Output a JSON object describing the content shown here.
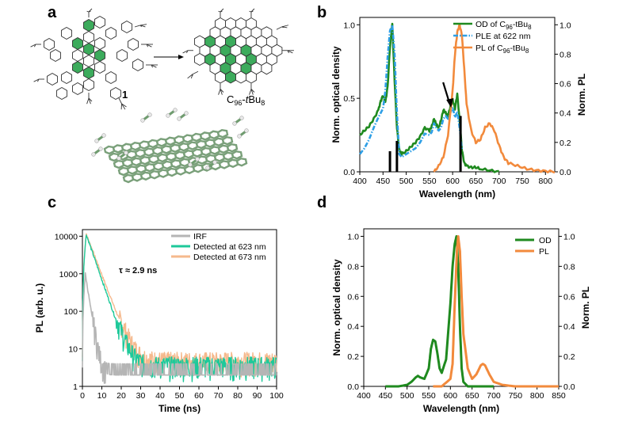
{
  "panels": {
    "a": "a",
    "b": "b",
    "c": "c",
    "d": "d"
  },
  "scheme": {
    "reactant_label": "1",
    "product_label": "C96-tBu8",
    "product_label_main": "C",
    "product_label_sub": "96",
    "product_label_mid": "-",
    "product_label_italic": "t",
    "product_label_tail": "Bu",
    "product_label_tail_sub": "8"
  },
  "colors": {
    "green": "#1f8a1f",
    "orange": "#f28a3c",
    "blue": "#2e9fe6",
    "grey": "#b5b5b5",
    "teal": "#1ec99a",
    "peach": "#f5b98d",
    "hex_fill": "#3cab5c"
  },
  "chart_data": [
    {
      "id": "b",
      "type": "line",
      "xlabel": "Wavelength (nm)",
      "ylabel": "Norm. optical density",
      "y2label": "Norm. PL",
      "xlim": [
        400,
        820
      ],
      "ylim": [
        0,
        1.05
      ],
      "y2lim": [
        0,
        1.05
      ],
      "xticks": [
        "400",
        "450",
        "500",
        "550",
        "600",
        "650",
        "700",
        "750",
        "800"
      ],
      "yticks": [
        "0.0",
        "0.5",
        "1.0"
      ],
      "y2ticks": [
        "0.0",
        "0.2",
        "0.4",
        "0.6",
        "0.8",
        "1.0"
      ],
      "legend": [
        {
          "text": "OD of C",
          "sub": "96",
          "tail": "-tBu",
          "tailsub": "8"
        },
        {
          "text": "PLE at 622 nm",
          "sub": "",
          "tail": "",
          "tailsub": ""
        },
        {
          "text": "PL of C",
          "sub": "96",
          "tail": "-tBu",
          "tailsub": "8"
        }
      ],
      "series": [
        {
          "name": "OD of C96-tBu8",
          "style": "solid",
          "color": "green",
          "x": [
            400,
            410,
            420,
            430,
            440,
            445,
            450,
            455,
            460,
            465,
            470,
            475,
            480,
            485,
            490,
            500,
            510,
            520,
            530,
            540,
            550,
            555,
            560,
            565,
            570,
            575,
            580,
            585,
            590,
            595,
            600,
            605,
            610,
            615,
            620,
            625,
            630,
            640,
            650,
            660,
            680,
            700
          ],
          "y": [
            0.25,
            0.28,
            0.31,
            0.36,
            0.42,
            0.48,
            0.52,
            0.47,
            0.58,
            0.85,
            1.0,
            0.62,
            0.3,
            0.15,
            0.12,
            0.14,
            0.17,
            0.2,
            0.24,
            0.3,
            0.28,
            0.31,
            0.36,
            0.32,
            0.3,
            0.35,
            0.42,
            0.4,
            0.38,
            0.44,
            0.49,
            0.43,
            0.53,
            0.35,
            0.15,
            0.06,
            0.04,
            0.03,
            0.03,
            0.02,
            0.01,
            0.0
          ]
        },
        {
          "name": "PLE at 622 nm",
          "style": "dashdot",
          "color": "blue",
          "x": [
            400,
            410,
            420,
            430,
            440,
            450,
            455,
            460,
            465,
            470,
            475,
            480,
            485,
            490,
            500,
            510,
            520,
            530,
            540,
            550,
            555,
            560,
            565,
            570,
            575,
            580,
            585,
            590,
            595,
            600,
            605,
            610,
            615,
            620
          ],
          "y": [
            0.12,
            0.16,
            0.22,
            0.3,
            0.37,
            0.43,
            0.55,
            0.78,
            0.96,
            1.0,
            0.8,
            0.4,
            0.12,
            0.1,
            0.12,
            0.14,
            0.16,
            0.2,
            0.26,
            0.25,
            0.27,
            0.33,
            0.3,
            0.28,
            0.3,
            0.36,
            0.38,
            0.36,
            0.4,
            0.44,
            0.37,
            0.41,
            0.3,
            0.15
          ]
        },
        {
          "name": "PL of C96-tBu8",
          "style": "solid",
          "color": "orange",
          "x": [
            560,
            570,
            580,
            590,
            600,
            605,
            610,
            615,
            620,
            625,
            630,
            640,
            650,
            660,
            670,
            680,
            690,
            700,
            710,
            720,
            740,
            760,
            780,
            800,
            820
          ],
          "y": [
            0.0,
            0.04,
            0.1,
            0.25,
            0.55,
            0.8,
            0.95,
            1.0,
            0.93,
            0.7,
            0.46,
            0.28,
            0.2,
            0.22,
            0.3,
            0.33,
            0.28,
            0.18,
            0.1,
            0.06,
            0.04,
            0.02,
            0.01,
            0.005,
            0.0
          ]
        }
      ],
      "bars": [
        {
          "x": 465,
          "y": 0.14
        },
        {
          "x": 480,
          "y": 0.21
        },
        {
          "x": 617,
          "y": 0.38
        }
      ],
      "arrow_at": 600
    },
    {
      "id": "c",
      "type": "line",
      "scale": "log",
      "xlabel": "Time (ns)",
      "ylabel": "PL (arb. u.)",
      "xlim": [
        0,
        100
      ],
      "ylim": [
        1,
        15000
      ],
      "xticks": [
        "0",
        "10",
        "20",
        "30",
        "40",
        "50",
        "60",
        "70",
        "80",
        "90",
        "100"
      ],
      "yticks": [
        "1",
        "10",
        "100",
        "1000",
        "10000"
      ],
      "annotation": "τ ≈ 2.9 ns",
      "legend": [
        "IRF",
        "Detected at 623 nm",
        "Detected at 673 nm"
      ],
      "series": [
        {
          "name": "IRF",
          "color": "grey",
          "peak_t": 1.5,
          "peak": 1000,
          "tau": 1.3,
          "noise_floor": 2
        },
        {
          "name": "Detected at 623 nm",
          "color": "teal",
          "peak_t": 2,
          "peak": 11000,
          "tau": 2.9,
          "noise_floor": 3
        },
        {
          "name": "Detected at 673 nm",
          "color": "peach",
          "peak_t": 2,
          "peak": 11500,
          "tau": 3.2,
          "noise_floor": 4
        }
      ]
    },
    {
      "id": "d",
      "type": "line",
      "xlabel": "Wavelength (nm)",
      "ylabel": "Norm. optical density",
      "y2label": "Norm. PL",
      "xlim": [
        400,
        850
      ],
      "ylim": [
        0,
        1.05
      ],
      "y2lim": [
        0,
        1.05
      ],
      "xticks": [
        "400",
        "450",
        "500",
        "550",
        "600",
        "650",
        "700",
        "750",
        "800",
        "850"
      ],
      "yticks": [
        "0.0",
        "0.2",
        "0.4",
        "0.6",
        "0.8",
        "1.0"
      ],
      "y2ticks": [
        "0.0",
        "0.2",
        "0.4",
        "0.6",
        "0.8",
        "1.0"
      ],
      "legend": [
        "OD",
        "PL"
      ],
      "series": [
        {
          "name": "OD",
          "color": "green",
          "x": [
            450,
            480,
            500,
            510,
            520,
            525,
            530,
            540,
            550,
            555,
            560,
            565,
            570,
            575,
            580,
            590,
            600,
            605,
            610,
            614,
            618,
            622,
            626,
            630,
            640,
            660,
            700
          ],
          "y": [
            0.0,
            0.0,
            0.01,
            0.03,
            0.06,
            0.07,
            0.06,
            0.05,
            0.12,
            0.25,
            0.31,
            0.3,
            0.22,
            0.12,
            0.09,
            0.18,
            0.55,
            0.8,
            0.95,
            1.0,
            0.8,
            0.4,
            0.12,
            0.03,
            0.0,
            0.0,
            0.0
          ]
        },
        {
          "name": "PL",
          "color": "orange",
          "x": [
            560,
            580,
            600,
            605,
            610,
            615,
            618,
            622,
            626,
            630,
            640,
            650,
            660,
            670,
            675,
            680,
            690,
            700,
            720,
            750,
            800,
            850
          ],
          "y": [
            0.0,
            0.0,
            0.05,
            0.15,
            0.55,
            0.9,
            1.0,
            0.9,
            0.6,
            0.35,
            0.12,
            0.05,
            0.08,
            0.14,
            0.15,
            0.14,
            0.08,
            0.03,
            0.01,
            0.0,
            0.0,
            0.0
          ]
        }
      ]
    }
  ]
}
